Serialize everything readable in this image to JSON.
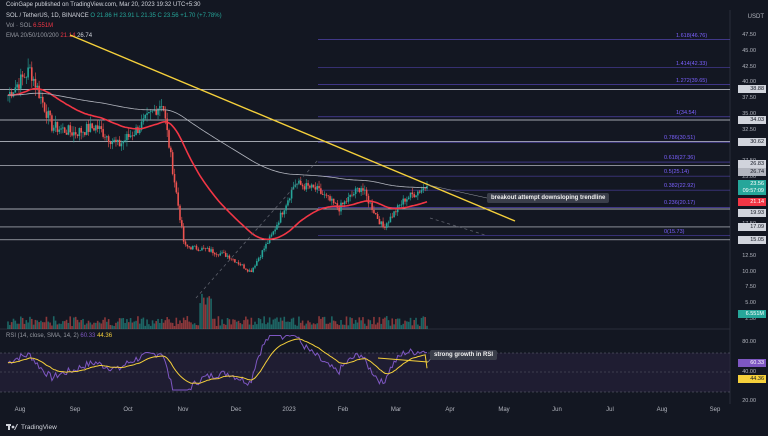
{
  "publisher_line": "CoinGape published on TradingView.com, Mar 20, 2023 19:32 UTC+5:30",
  "legend": {
    "symbol": "SOL / TetherUS, 1D, BINANCE",
    "ohlc": "O 21.86  H 23.91  L 21.35  C 23.56  +1.70 (+7.78%)",
    "vol": "Vol · SOL",
    "vol_value": "6.551M",
    "ema": "EMA 20/50/100/200",
    "ema_value_1": "21.14",
    "ema_value_2": "26.74"
  },
  "rsi_legend": {
    "label": "RSI (14, close, SMA, 14, 2)",
    "value_1": "60.33",
    "value_2": "44.36"
  },
  "price_axis": {
    "currency": "USDT",
    "ticks": [
      "47.50",
      "45.00",
      "42.50",
      "40.00",
      "37.50",
      "35.00",
      "32.50",
      "30.00",
      "27.50",
      "25.00",
      "22.50",
      "17.50",
      "15.00",
      "12.50",
      "10.00",
      "7.50",
      "5.00",
      "2.50"
    ],
    "rsi_ticks": [
      "80.00",
      "40.00",
      "20.00"
    ]
  },
  "badges": [
    {
      "text": "38.88",
      "type": "level"
    },
    {
      "text": "34.03",
      "type": "level"
    },
    {
      "text": "30.62",
      "type": "level"
    },
    {
      "text": "26.83",
      "type": "level"
    },
    {
      "text": "26.74",
      "type": "ema_gray"
    },
    {
      "text": "23.56",
      "type": "price"
    },
    {
      "text": "09:57:09",
      "type": "countdown"
    },
    {
      "text": "21.14",
      "type": "ema_red"
    },
    {
      "text": "19.93",
      "type": "level"
    },
    {
      "text": "17.09",
      "type": "level"
    },
    {
      "text": "15.05",
      "type": "level"
    },
    {
      "text": "6.551M",
      "type": "volume"
    },
    {
      "text": "60.33",
      "type": "rsi"
    },
    {
      "text": "44.36",
      "type": "rsi_ma"
    }
  ],
  "fib_labels": [
    {
      "text": "1.618(46.76)"
    },
    {
      "text": "1.414(42.33)"
    },
    {
      "text": "1.272(39.65)"
    },
    {
      "text": "1(34.54)"
    },
    {
      "text": "0.786(30.51)"
    },
    {
      "text": "0.618(27.36)"
    },
    {
      "text": "0.5(25.14)"
    },
    {
      "text": "0.382(22.92)"
    },
    {
      "text": "0.236(20.17)"
    },
    {
      "text": "0(15.73)"
    }
  ],
  "callouts": {
    "breakout": "breakout attempt downsloping trendline",
    "rsi": "strong growth in RSI"
  },
  "x_axis": [
    "Aug",
    "Sep",
    "Oct",
    "Nov",
    "Dec",
    "2023",
    "Feb",
    "Mar",
    "Apr",
    "May",
    "Jun",
    "Jul",
    "Aug",
    "Sep"
  ],
  "footer": "TradingView",
  "colors": {
    "background": "#131722",
    "up_candle": "#26a69a",
    "down_candle": "#ef5350",
    "trendline": "#f5d03b",
    "fib": "#7b61ff",
    "ema_red": "#f23645",
    "ema_gray": "#b2b5be",
    "rsi": "#7e57c2",
    "rsi_ma": "#f5d03b"
  },
  "chart_data": {
    "type": "candlestick",
    "symbol": "SOL / TetherUS",
    "interval": "1D",
    "y_range": [
      2.5,
      48
    ],
    "approx_close_path": [
      {
        "d": "Aug",
        "v": 38
      },
      {
        "d": "Aug",
        "v": 42
      },
      {
        "d": "Sep",
        "v": 33
      },
      {
        "d": "Sep",
        "v": 32
      },
      {
        "d": "Oct",
        "v": 33
      },
      {
        "d": "Oct",
        "v": 30
      },
      {
        "d": "Nov",
        "v": 33
      },
      {
        "d": "Nov",
        "v": 37
      },
      {
        "d": "Nov",
        "v": 14
      },
      {
        "d": "Dec",
        "v": 13.5
      },
      {
        "d": "Dec",
        "v": 12.5
      },
      {
        "d": "2023",
        "v": 10
      },
      {
        "d": "2023",
        "v": 16
      },
      {
        "d": "2023",
        "v": 24
      },
      {
        "d": "Feb",
        "v": 23
      },
      {
        "d": "Feb",
        "v": 20
      },
      {
        "d": "Mar",
        "v": 23.5
      },
      {
        "d": "Mar",
        "v": 17
      },
      {
        "d": "Mar",
        "v": 21.5
      },
      {
        "d": "Mar",
        "v": 23.56
      }
    ],
    "last_price": 23.56,
    "ema_values": [
      21.14,
      26.74
    ],
    "horizontal_levels": [
      38.88,
      34.03,
      30.62,
      26.83,
      19.93,
      17.09,
      15.05
    ],
    "fibonacci_levels": [
      {
        "ratio": 1.618,
        "price": 46.76
      },
      {
        "ratio": 1.414,
        "price": 42.33
      },
      {
        "ratio": 1.272,
        "price": 39.65
      },
      {
        "ratio": 1,
        "price": 34.54
      },
      {
        "ratio": 0.786,
        "price": 30.51
      },
      {
        "ratio": 0.618,
        "price": 27.36
      },
      {
        "ratio": 0.5,
        "price": 25.14
      },
      {
        "ratio": 0.382,
        "price": 22.92
      },
      {
        "ratio": 0.236,
        "price": 20.17
      },
      {
        "ratio": 0,
        "price": 15.73
      }
    ],
    "rsi": {
      "value": 60.33,
      "ma": 44.36,
      "range": [
        20,
        80
      ]
    }
  }
}
